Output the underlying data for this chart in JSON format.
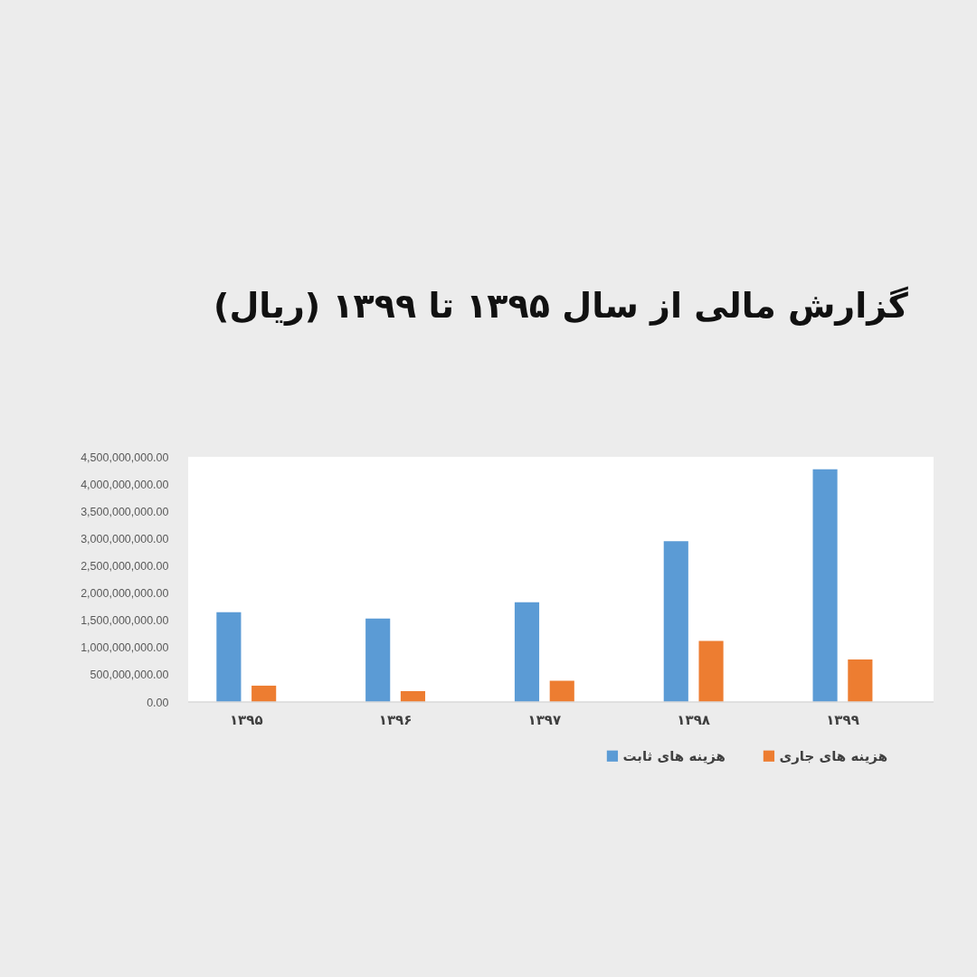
{
  "chart_data": {
    "type": "bar",
    "title": "گزارش مالی از سال ۱۳۹۵ تا ۱۳۹۹ (ریال)",
    "categories": [
      "۱۳۹۵",
      "۱۳۹۶",
      "۱۳۹۷",
      "۱۳۹۸",
      "۱۳۹۹"
    ],
    "series": [
      {
        "name": "هزینه های ثابت",
        "color": "#5b9bd5",
        "values": [
          1650000000,
          1530000000,
          1830000000,
          2950000000,
          4270000000
        ]
      },
      {
        "name": "هزینه های جاری",
        "color": "#ed7d31",
        "values": [
          300000000,
          200000000,
          390000000,
          1120000000,
          780000000
        ]
      }
    ],
    "ylim": [
      0,
      4500000000
    ],
    "yticks": [
      {
        "value": 0,
        "label": "0.00"
      },
      {
        "value": 500000000,
        "label": "500,000,000.00"
      },
      {
        "value": 1000000000,
        "label": "1,000,000,000.00"
      },
      {
        "value": 1500000000,
        "label": "1,500,000,000.00"
      },
      {
        "value": 2000000000,
        "label": "2,000,000,000.00"
      },
      {
        "value": 2500000000,
        "label": "2,500,000,000.00"
      },
      {
        "value": 3000000000,
        "label": "3,000,000,000.00"
      },
      {
        "value": 3500000000,
        "label": "3,500,000,000.00"
      },
      {
        "value": 4000000000,
        "label": "4,000,000,000.00"
      },
      {
        "value": 4500000000,
        "label": "4,500,000,000.00"
      }
    ],
    "grid": false,
    "legend": "bottom"
  }
}
